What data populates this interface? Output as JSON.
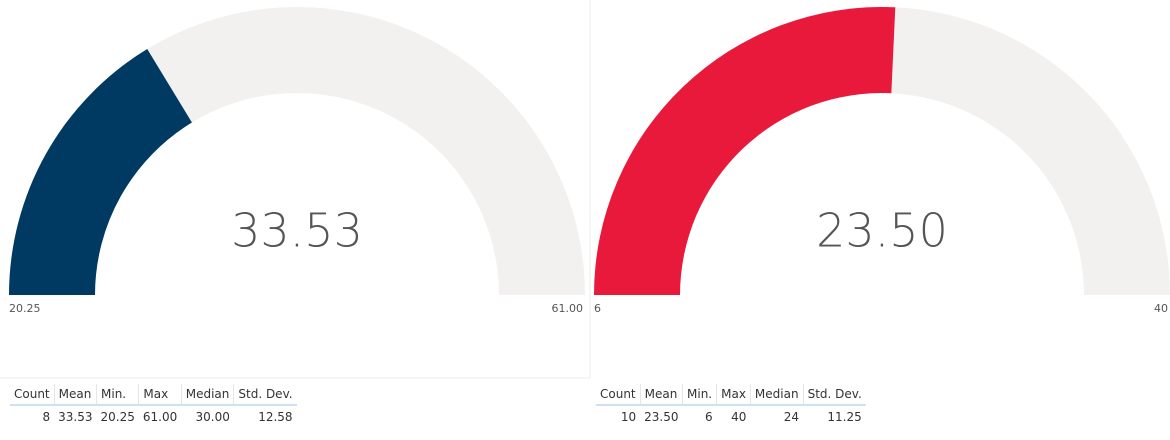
{
  "chart_data": [
    {
      "type": "gauge",
      "value": 33.53,
      "color": "#003a63",
      "track_color": "#f2f1f0",
      "lim": [
        20.25,
        61
      ],
      "ticks": [
        20.25,
        {
          "value": 61,
          "label": "61.00"
        }
      ],
      "table": {
        "headers": [
          "Count",
          "Mean",
          "Min.",
          "Max",
          "Median",
          "Std. Dev."
        ],
        "rows": [
          [
            "8",
            "33.53",
            "20.25",
            "61.00",
            "30.00",
            "12.58"
          ]
        ]
      }
    },
    {
      "type": "gauge",
      "value": 23.5,
      "value_label": "23.50",
      "color": "#e8193a",
      "track_color": "#f2f1f0",
      "lim": [
        6,
        40
      ],
      "ticks": [
        6,
        40
      ],
      "table": {
        "headers": [
          "Count",
          "Mean",
          "Min.",
          "Max",
          "Median",
          "Std. Dev."
        ],
        "rows": [
          [
            "10",
            "23.50",
            "6",
            "40",
            "24",
            "11.25"
          ]
        ]
      }
    }
  ]
}
